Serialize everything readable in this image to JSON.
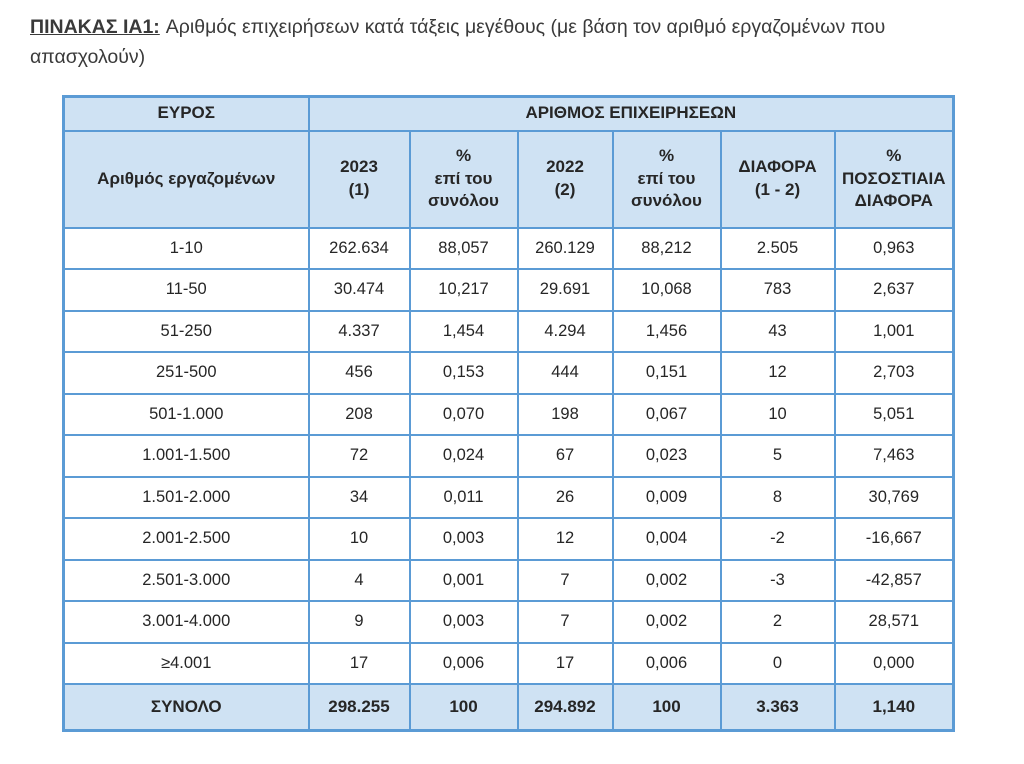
{
  "title": {
    "label": "ΠΙΝΑΚΑΣ ΙΑ1:",
    "text": "Αριθμός επιχειρήσεων κατά τάξεις μεγέθους (με βάση τον αριθμό εργαζομένων που απασχολούν)"
  },
  "colors": {
    "header_fill": "#cfe2f3",
    "border_blue": "#5b9bd5",
    "text": "#262626"
  },
  "table": {
    "group_headers": {
      "left": "ΕΥΡΟΣ",
      "right": "ΑΡΙΘΜΟΣ ΕΠΙΧΕΙΡΗΣΕΩΝ"
    },
    "column_headers": {
      "c1": "Αριθμός εργαζομένων",
      "c2": "2023\n(1)",
      "c3": "%\nεπί του\nσυνόλου",
      "c4": "2022\n(2)",
      "c5": "%\nεπί του\nσυνόλου",
      "c6": "ΔΙΑΦΟΡΑ\n(1 - 2)",
      "c7": "%\nΠΟΣΟΣΤΙΑΙΑ\nΔΙΑΦΟΡΑ"
    },
    "rows": [
      [
        "1-10",
        "262.634",
        "88,057",
        "260.129",
        "88,212",
        "2.505",
        "0,963"
      ],
      [
        "11-50",
        "30.474",
        "10,217",
        "29.691",
        "10,068",
        "783",
        "2,637"
      ],
      [
        "51-250",
        "4.337",
        "1,454",
        "4.294",
        "1,456",
        "43",
        "1,001"
      ],
      [
        "251-500",
        "456",
        "0,153",
        "444",
        "0,151",
        "12",
        "2,703"
      ],
      [
        "501-1.000",
        "208",
        "0,070",
        "198",
        "0,067",
        "10",
        "5,051"
      ],
      [
        "1.001-1.500",
        "72",
        "0,024",
        "67",
        "0,023",
        "5",
        "7,463"
      ],
      [
        "1.501-2.000",
        "34",
        "0,011",
        "26",
        "0,009",
        "8",
        "30,769"
      ],
      [
        "2.001-2.500",
        "10",
        "0,003",
        "12",
        "0,004",
        "-2",
        "-16,667"
      ],
      [
        "2.501-3.000",
        "4",
        "0,001",
        "7",
        "0,002",
        "-3",
        "-42,857"
      ],
      [
        "3.001-4.000",
        "9",
        "0,003",
        "7",
        "0,002",
        "2",
        "28,571"
      ],
      [
        "≥4.001",
        "17",
        "0,006",
        "17",
        "0,006",
        "0",
        "0,000"
      ]
    ],
    "total": [
      "ΣΥΝΟΛΟ",
      "298.255",
      "100",
      "294.892",
      "100",
      "3.363",
      "1,140"
    ]
  }
}
